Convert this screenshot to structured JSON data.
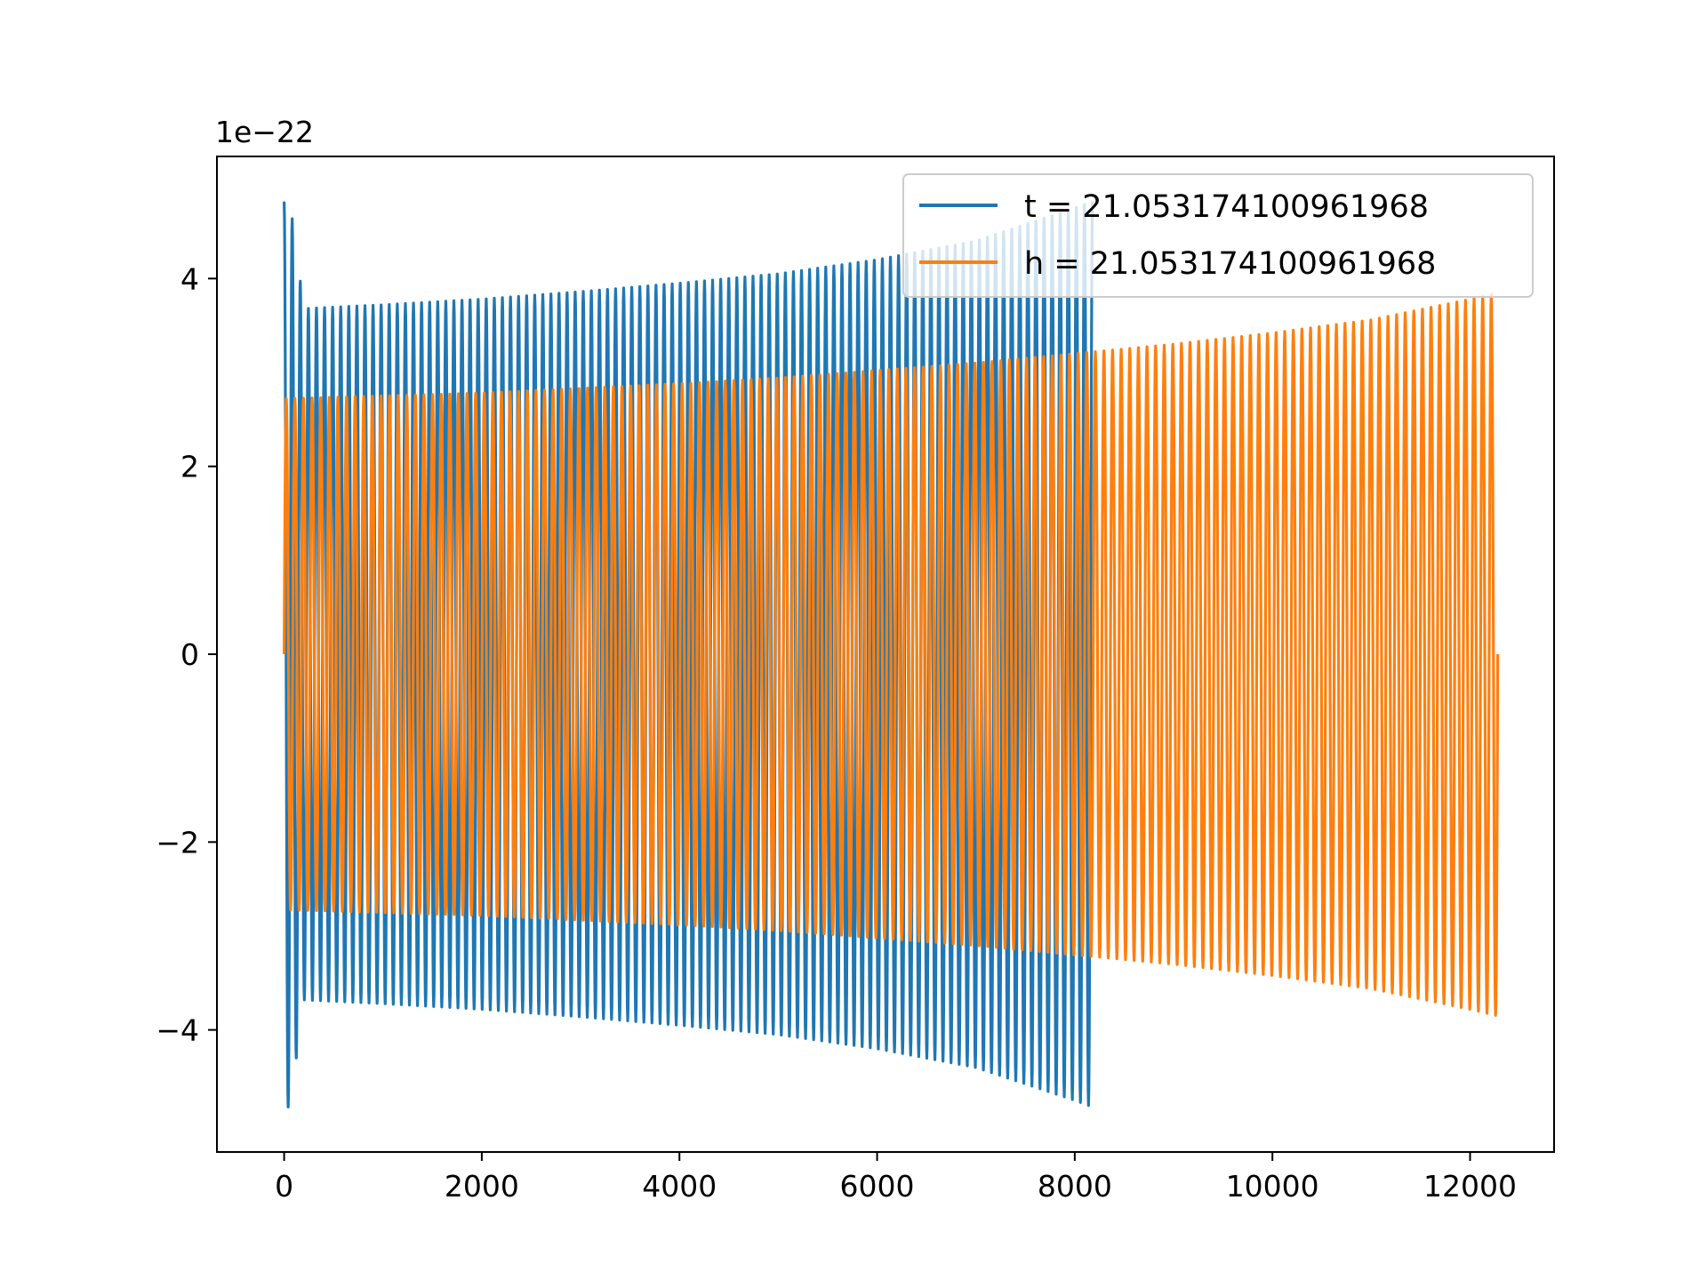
{
  "chart_data": {
    "type": "line",
    "title": "",
    "xlabel": "",
    "ylabel": "",
    "xlim": [
      -680,
      12850
    ],
    "ylim": [
      -5.3,
      5.3
    ],
    "y_multiplier": "1e−22",
    "xticks": [
      0,
      2000,
      4000,
      6000,
      8000,
      10000,
      12000
    ],
    "xtick_labels": [
      "0",
      "2000",
      "4000",
      "6000",
      "8000",
      "10000",
      "12000"
    ],
    "yticks": [
      -4,
      -2,
      0,
      2,
      4
    ],
    "ytick_labels": [
      "−4",
      "−2",
      "0",
      "2",
      "4"
    ],
    "grid": false,
    "legend_position": "top-right",
    "series": [
      {
        "name": "t = 21.053174100961968",
        "color": "#1f77b4",
        "x_range": [
          0,
          8180
        ],
        "cycles": 100,
        "envelope": {
          "x": [
            0,
            60,
            110,
            200,
            1000,
            2000,
            3000,
            4000,
            5000,
            6000,
            7000,
            8000,
            8180
          ],
          "upper": [
            4.82,
            4.82,
            4.4,
            3.68,
            3.72,
            3.78,
            3.86,
            3.95,
            4.05,
            4.2,
            4.4,
            4.75,
            4.82
          ],
          "lower": [
            -4.82,
            -4.82,
            -4.4,
            -3.68,
            -3.72,
            -3.78,
            -3.86,
            -3.95,
            -4.05,
            -4.2,
            -4.4,
            -4.75,
            -4.82
          ]
        }
      },
      {
        "name": "h = 21.053174100961968",
        "color": "#ff7f0e",
        "x_range": [
          0,
          12280
        ],
        "cycles": 141,
        "envelope": {
          "x": [
            0,
            1000,
            2000,
            3000,
            4000,
            5000,
            6000,
            7000,
            8000,
            9000,
            10000,
            11000,
            12000,
            12280
          ],
          "upper": [
            2.72,
            2.75,
            2.78,
            2.83,
            2.88,
            2.94,
            3.02,
            3.1,
            3.2,
            3.3,
            3.42,
            3.56,
            3.78,
            3.85
          ],
          "lower": [
            -2.72,
            -2.75,
            -2.78,
            -2.83,
            -2.88,
            -2.94,
            -3.02,
            -3.1,
            -3.2,
            -3.3,
            -3.42,
            -3.56,
            -3.78,
            -3.85
          ]
        }
      }
    ]
  }
}
